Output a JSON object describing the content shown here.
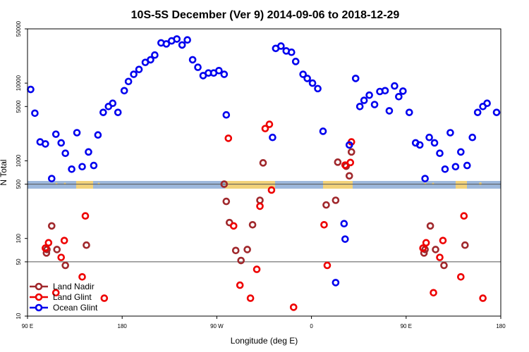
{
  "chart_data": {
    "type": "scatter",
    "title": "10S-5S December (Ver 9)   2014-09-06 to 2018-12-29",
    "xlabel": "Longitude (deg E)",
    "ylabel": "N Total",
    "y_scale": "log",
    "ylim": [
      10,
      50000
    ],
    "xlim": [
      90,
      540
    ],
    "x_ticks": [
      {
        "value": 90,
        "label": "90 E"
      },
      {
        "value": 180,
        "label": "180"
      },
      {
        "value": 270,
        "label": "90 W"
      },
      {
        "value": 360,
        "label": "0"
      },
      {
        "value": 450,
        "label": "90 E"
      },
      {
        "value": 540,
        "label": "180"
      }
    ],
    "y_ticks": [
      {
        "value": 10,
        "label": "10"
      },
      {
        "value": 50,
        "label": "50"
      },
      {
        "value": 100,
        "label": "100"
      },
      {
        "value": 500,
        "label": "500"
      },
      {
        "value": 1000,
        "label": "1000"
      },
      {
        "value": 5000,
        "label": "5000"
      },
      {
        "value": 10000,
        "label": "10000"
      },
      {
        "value": 50000,
        "label": "50000"
      }
    ],
    "reference_lines": [
      500,
      50
    ],
    "map_band": {
      "ocean_color": "#9db8dc",
      "land_color": "#f2d27a"
    },
    "legend_position": "bottom-left",
    "series": [
      {
        "name": "Land Nadir",
        "color": "#a0282c",
        "points": [
          [
            108,
            65
          ],
          [
            108.5,
            72
          ],
          [
            113,
            145
          ],
          [
            118,
            72
          ],
          [
            126,
            45
          ],
          [
            146,
            82
          ],
          [
            277,
            500
          ],
          [
            279,
            300
          ],
          [
            282,
            160
          ],
          [
            288,
            70
          ],
          [
            293,
            52
          ],
          [
            299,
            72
          ],
          [
            304,
            150
          ],
          [
            311,
            310
          ],
          [
            314,
            940
          ],
          [
            374,
            270
          ],
          [
            383,
            310
          ],
          [
            385,
            960
          ],
          [
            393,
            850
          ],
          [
            396,
            640
          ],
          [
            398,
            1300
          ],
          [
            467,
            65
          ],
          [
            468,
            72
          ],
          [
            473,
            145
          ],
          [
            478,
            72
          ],
          [
            486,
            45
          ],
          [
            506,
            82
          ]
        ]
      },
      {
        "name": "Land Glint",
        "color": "#ee0000",
        "points": [
          [
            107,
            75
          ],
          [
            110,
            88
          ],
          [
            117,
            20
          ],
          [
            122,
            57
          ],
          [
            125,
            94
          ],
          [
            142,
            32
          ],
          [
            145,
            195
          ],
          [
            163,
            17
          ],
          [
            281,
            1950
          ],
          [
            286,
            145
          ],
          [
            292,
            25
          ],
          [
            302,
            17
          ],
          [
            308,
            40
          ],
          [
            311,
            260
          ],
          [
            316,
            2600
          ],
          [
            320,
            2950
          ],
          [
            322,
            420
          ],
          [
            343,
            13
          ],
          [
            372,
            150
          ],
          [
            375,
            45
          ],
          [
            392,
            880
          ],
          [
            397,
            950
          ],
          [
            398,
            1750
          ],
          [
            466,
            75
          ],
          [
            469,
            88
          ],
          [
            476,
            20
          ],
          [
            482,
            57
          ],
          [
            485,
            94
          ],
          [
            502,
            32
          ],
          [
            505,
            195
          ],
          [
            523,
            17
          ]
        ]
      },
      {
        "name": "Ocean Glint",
        "color": "#0000ee",
        "points": [
          [
            93,
            8300
          ],
          [
            97,
            4100
          ],
          [
            102,
            1750
          ],
          [
            107,
            1650
          ],
          [
            113,
            590
          ],
          [
            117,
            2200
          ],
          [
            122,
            1700
          ],
          [
            126,
            1250
          ],
          [
            132,
            780
          ],
          [
            137,
            2300
          ],
          [
            142,
            840
          ],
          [
            148,
            1300
          ],
          [
            153,
            870
          ],
          [
            157,
            2150
          ],
          [
            162,
            4200
          ],
          [
            167,
            5000
          ],
          [
            171,
            5500
          ],
          [
            176,
            4200
          ],
          [
            182,
            8000
          ],
          [
            186,
            10500
          ],
          [
            191,
            13000
          ],
          [
            196,
            15000
          ],
          [
            202,
            18500
          ],
          [
            207,
            20000
          ],
          [
            211,
            23000
          ],
          [
            217,
            33000
          ],
          [
            222,
            32000
          ],
          [
            227,
            35000
          ],
          [
            232,
            37000
          ],
          [
            237,
            31000
          ],
          [
            242,
            36000
          ],
          [
            247,
            20000
          ],
          [
            252,
            16000
          ],
          [
            257,
            12500
          ],
          [
            262,
            13500
          ],
          [
            267,
            13500
          ],
          [
            272,
            14500
          ],
          [
            277,
            13000
          ],
          [
            279,
            3900
          ],
          [
            323,
            2000
          ],
          [
            326,
            28000
          ],
          [
            331,
            30000
          ],
          [
            336,
            26000
          ],
          [
            341,
            25000
          ],
          [
            345,
            19000
          ],
          [
            352,
            13000
          ],
          [
            356,
            11500
          ],
          [
            361,
            10000
          ],
          [
            366,
            8500
          ],
          [
            371,
            2400
          ],
          [
            383,
            27
          ],
          [
            391,
            155
          ],
          [
            392,
            98
          ],
          [
            396,
            1600
          ],
          [
            402,
            11500
          ],
          [
            406,
            5000
          ],
          [
            410,
            6000
          ],
          [
            415,
            7000
          ],
          [
            420,
            5300
          ],
          [
            425,
            7800
          ],
          [
            430,
            8000
          ],
          [
            434,
            4400
          ],
          [
            439,
            9200
          ],
          [
            443,
            6700
          ],
          [
            447,
            7900
          ],
          [
            453,
            4200
          ],
          [
            459,
            1700
          ],
          [
            463,
            1600
          ],
          [
            468,
            590
          ],
          [
            472,
            2000
          ],
          [
            477,
            1700
          ],
          [
            482,
            1250
          ],
          [
            487,
            780
          ],
          [
            492,
            2300
          ],
          [
            497,
            840
          ],
          [
            502,
            1300
          ],
          [
            508,
            870
          ],
          [
            513,
            2000
          ],
          [
            518,
            4200
          ],
          [
            523,
            5000
          ],
          [
            527,
            5500
          ],
          [
            536,
            4200
          ]
        ]
      }
    ]
  }
}
